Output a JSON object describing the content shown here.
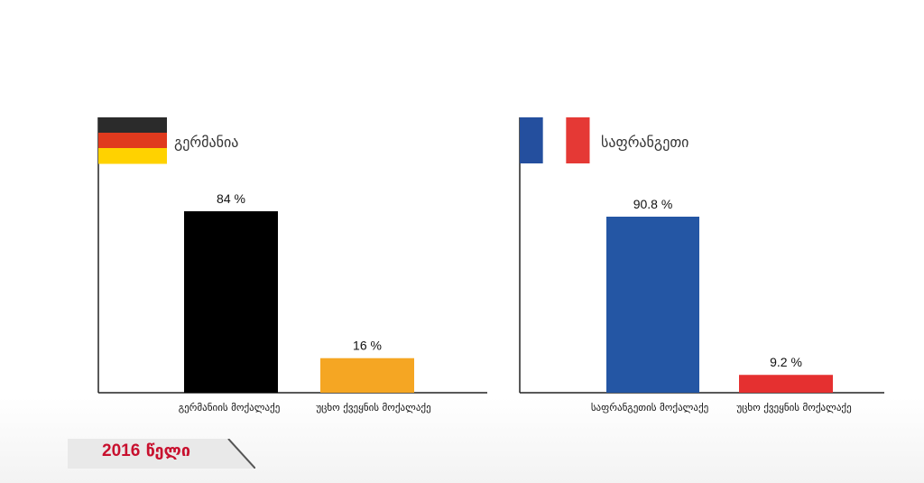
{
  "charts": [
    {
      "title": "გერმანია",
      "flag": {
        "country": "Germany",
        "colors": [
          "#2b2b2b",
          "#e03a1e",
          "#ffd200"
        ],
        "orientation": "horizontal"
      }
    },
    {
      "title": "საფრანგეთი",
      "flag": {
        "country": "France",
        "colors": [
          "#244f9e",
          "#ffffff",
          "#e53935"
        ],
        "orientation": "vertical"
      }
    }
  ],
  "chart_data": [
    {
      "type": "bar",
      "title": "გერმანია",
      "categories": [
        "გერმანიის მოქალაქე",
        "უცხო ქვეყნის მოქალაქე"
      ],
      "values": [
        84,
        16
      ],
      "value_labels": [
        "84 %",
        "16 %"
      ],
      "colors": [
        "#000000",
        "#f5a623"
      ],
      "ylim": [
        0,
        100
      ],
      "xlabel": "",
      "ylabel": "",
      "grid": false
    },
    {
      "type": "bar",
      "title": "საფრანგეთი",
      "categories": [
        "საფრანგეთის მოქალაქე",
        "უცხო ქვეყნის მოქალაქე"
      ],
      "values": [
        90.8,
        9.2
      ],
      "value_labels": [
        "90.8 %",
        "9.2 %"
      ],
      "colors": [
        "#2456a4",
        "#e53030"
      ],
      "ylim": [
        0,
        100
      ],
      "xlabel": "",
      "ylabel": "",
      "grid": false
    }
  ],
  "footer": {
    "year": "2016",
    "year_word": "წელი"
  }
}
